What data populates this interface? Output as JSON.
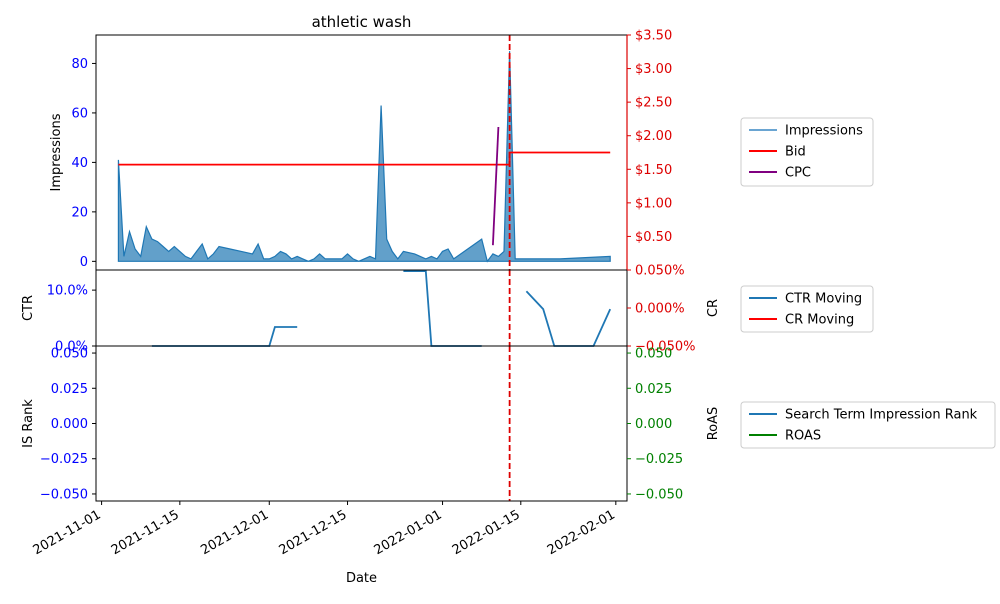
{
  "chart_data": {
    "type": "multi-panel time series",
    "title": "athletic wash",
    "xlabel": "Date",
    "x_ticks": [
      "2021-11-01",
      "2021-11-15",
      "2021-12-01",
      "2021-12-15",
      "2022-01-01",
      "2022-01-15",
      "2022-02-01"
    ],
    "xlim": [
      "2021-10-31",
      "2022-02-03"
    ],
    "event_marker": {
      "date": "2022-01-13",
      "color": "#dd0000",
      "style": "dashed"
    },
    "panels": [
      {
        "ylabel_left": "Impressions",
        "ylim_left": [
          -3.5,
          91.5
        ],
        "yticks_left": [
          0,
          20,
          40,
          60,
          80
        ],
        "ytick_labels_left": [
          "0",
          "20",
          "40",
          "60",
          "80"
        ],
        "left_tick_color": "#0000ff",
        "ylim_right": [
          0,
          3.5
        ],
        "yticks_right": [
          0.5,
          1.0,
          1.5,
          2.0,
          2.5,
          3.0,
          3.5
        ],
        "ytick_labels_right": [
          "$0.50",
          "$1.00",
          "$1.50",
          "$2.00",
          "$2.50",
          "$3.00",
          "$3.50"
        ],
        "right_tick_color": "#dd0000",
        "legend": [
          {
            "label": "Impressions",
            "color": "#6aa5d2"
          },
          {
            "label": "Bid",
            "color": "#ff0000"
          },
          {
            "label": "CPC",
            "color": "#800080"
          }
        ],
        "series": [
          {
            "name": "Impressions",
            "kind": "area",
            "axis": "left",
            "color": "#1f77b4",
            "points": [
              [
                "2021-11-04",
                41
              ],
              [
                "2021-11-05",
                2
              ],
              [
                "2021-11-06",
                12
              ],
              [
                "2021-11-07",
                5
              ],
              [
                "2021-11-08",
                2
              ],
              [
                "2021-11-09",
                14
              ],
              [
                "2021-11-10",
                9
              ],
              [
                "2021-11-11",
                8
              ],
              [
                "2021-11-12",
                6
              ],
              [
                "2021-11-13",
                4
              ],
              [
                "2021-11-14",
                6
              ],
              [
                "2021-11-15",
                4
              ],
              [
                "2021-11-16",
                2
              ],
              [
                "2021-11-17",
                1
              ],
              [
                "2021-11-18",
                4
              ],
              [
                "2021-11-19",
                7
              ],
              [
                "2021-11-20",
                1
              ],
              [
                "2021-11-21",
                3
              ],
              [
                "2021-11-22",
                6
              ],
              [
                "2021-11-24",
                5
              ],
              [
                "2021-11-26",
                4
              ],
              [
                "2021-11-28",
                3
              ],
              [
                "2021-11-29",
                7
              ],
              [
                "2021-11-30",
                1
              ],
              [
                "2021-12-01",
                1
              ],
              [
                "2021-12-02",
                2
              ],
              [
                "2021-12-03",
                4
              ],
              [
                "2021-12-04",
                3
              ],
              [
                "2021-12-05",
                1
              ],
              [
                "2021-12-06",
                2
              ],
              [
                "2021-12-07",
                1
              ],
              [
                "2021-12-08",
                0
              ],
              [
                "2021-12-09",
                1
              ],
              [
                "2021-12-10",
                3
              ],
              [
                "2021-12-11",
                1
              ],
              [
                "2021-12-13",
                1
              ],
              [
                "2021-12-14",
                1
              ],
              [
                "2021-12-15",
                3
              ],
              [
                "2021-12-16",
                1
              ],
              [
                "2021-12-17",
                0
              ],
              [
                "2021-12-19",
                2
              ],
              [
                "2021-12-20",
                1
              ],
              [
                "2021-12-21",
                63
              ],
              [
                "2021-12-22",
                9
              ],
              [
                "2021-12-23",
                4
              ],
              [
                "2021-12-24",
                1
              ],
              [
                "2021-12-25",
                4
              ],
              [
                "2021-12-27",
                3
              ],
              [
                "2021-12-28",
                2
              ],
              [
                "2021-12-29",
                1
              ],
              [
                "2021-12-30",
                2
              ],
              [
                "2021-12-31",
                1
              ],
              [
                "2022-01-01",
                4
              ],
              [
                "2022-01-02",
                5
              ],
              [
                "2022-01-03",
                1
              ],
              [
                "2022-01-08",
                9
              ],
              [
                "2022-01-09",
                0
              ],
              [
                "2022-01-10",
                3
              ],
              [
                "2022-01-11",
                2
              ],
              [
                "2022-01-12",
                4
              ],
              [
                "2022-01-13",
                85
              ],
              [
                "2022-01-14",
                1
              ],
              [
                "2022-01-19",
                1
              ],
              [
                "2022-01-22",
                1
              ],
              [
                "2022-01-31",
                2
              ]
            ]
          },
          {
            "name": "Bid",
            "kind": "line",
            "axis": "right",
            "color": "#ff0000",
            "points": [
              [
                "2021-11-04",
                1.57
              ],
              [
                "2022-01-13",
                1.57
              ],
              [
                "2022-01-13",
                1.75
              ],
              [
                "2022-01-31",
                1.75
              ]
            ]
          },
          {
            "name": "CPC",
            "kind": "line",
            "axis": "right",
            "color": "#800080",
            "points": [
              [
                "2022-01-10",
                0.37
              ],
              [
                "2022-01-11",
                2.13
              ]
            ]
          }
        ]
      },
      {
        "ylabel_left": "CTR",
        "ylim_left": [
          0,
          0.136
        ],
        "yticks_left": [
          0,
          0.1
        ],
        "ytick_labels_left": [
          "0.0%",
          "10.0%"
        ],
        "left_tick_color": "#0000ff",
        "ylabel_right": "CR",
        "ylim_right": [
          -0.05,
          0.05
        ],
        "yticks_right": [
          -0.05,
          0,
          0.05
        ],
        "ytick_labels_right": [
          "−0.050%",
          "0.000%",
          "0.050%"
        ],
        "right_tick_color": "#dd0000",
        "legend": [
          {
            "label": "CTR Moving",
            "color": "#1f77b4"
          },
          {
            "label": "CR Moving",
            "color": "#ff0000"
          }
        ],
        "series": [
          {
            "name": "CTR Moving",
            "kind": "line",
            "axis": "left",
            "color": "#1f77b4",
            "segments": [
              [
                [
                  "2021-11-10",
                  0
                ],
                [
                  "2021-12-01",
                  0
                ],
                [
                  "2021-12-02",
                  0.034
                ],
                [
                  "2021-12-06",
                  0.034
                ]
              ],
              [
                [
                  "2021-12-25",
                  0.134
                ],
                [
                  "2021-12-29",
                  0.134
                ],
                [
                  "2021-12-30",
                  0
                ],
                [
                  "2022-01-08",
                  0
                ]
              ],
              [
                [
                  "2022-01-16",
                  0.098
                ],
                [
                  "2022-01-19",
                  0.066
                ],
                [
                  "2022-01-21",
                  0
                ],
                [
                  "2022-01-28",
                  0
                ],
                [
                  "2022-01-31",
                  0.066
                ]
              ]
            ]
          },
          {
            "name": "CR Moving",
            "kind": "line",
            "axis": "right",
            "color": "#ff0000",
            "segments": []
          }
        ]
      },
      {
        "ylabel_left": "IS Rank",
        "ylim_left": [
          -0.055,
          0.055
        ],
        "yticks_left": [
          -0.05,
          -0.025,
          0,
          0.025,
          0.05
        ],
        "ytick_labels_left": [
          "−0.050",
          "−0.025",
          "0.000",
          "0.025",
          "0.050"
        ],
        "left_tick_color": "#0000ff",
        "ylabel_right": "RoAS",
        "ylim_right": [
          -0.055,
          0.055
        ],
        "yticks_right": [
          -0.05,
          -0.025,
          0,
          0.025,
          0.05
        ],
        "ytick_labels_right": [
          "−0.050",
          "−0.025",
          "0.000",
          "0.025",
          "0.050"
        ],
        "right_tick_color": "#008000",
        "legend": [
          {
            "label": "Search Term Impression Rank",
            "color": "#1f77b4"
          },
          {
            "label": "ROAS",
            "color": "#008000"
          }
        ],
        "series": [
          {
            "name": "Search Term Impression Rank",
            "kind": "line",
            "axis": "left",
            "color": "#1f77b4",
            "points": []
          },
          {
            "name": "ROAS",
            "kind": "line",
            "axis": "right",
            "color": "#008000",
            "points": []
          }
        ]
      }
    ]
  }
}
